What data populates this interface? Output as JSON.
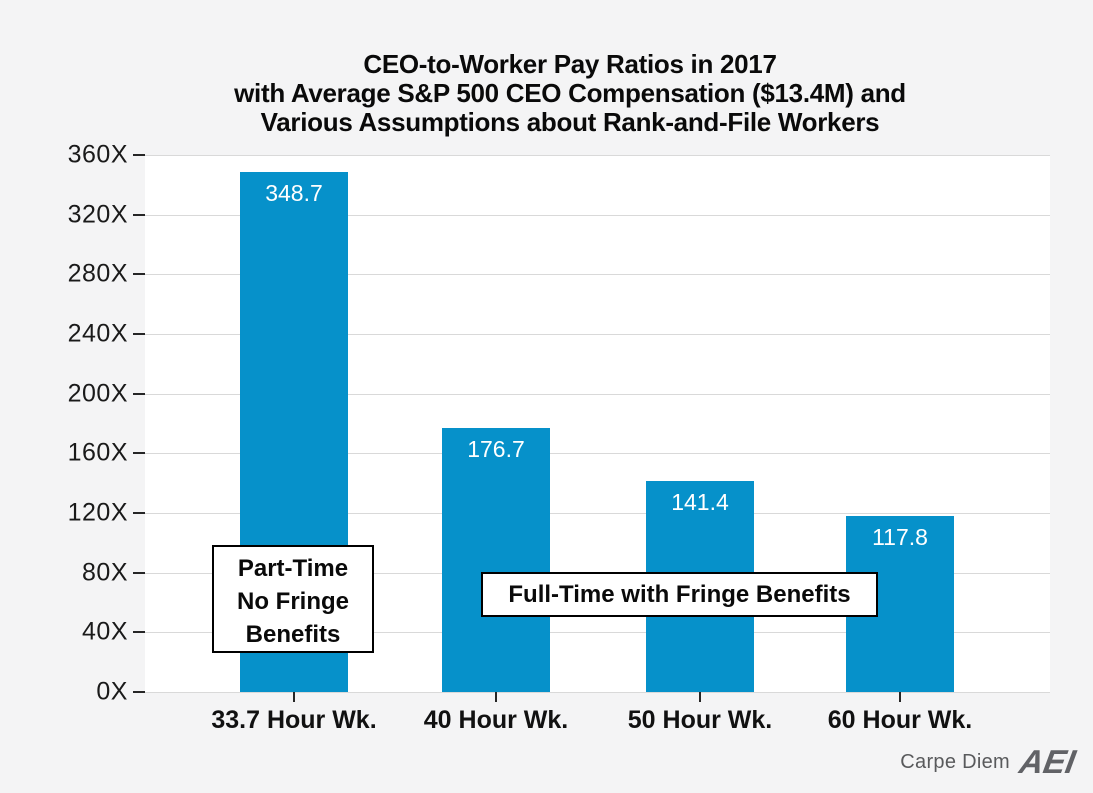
{
  "chart_data": {
    "type": "bar",
    "title": "CEO-to-Worker Pay Ratios in 2017 with Average S&P 500 CEO Compensation ($13.4M) and Various Assumptions about Rank-and-File Workers",
    "title_lines": [
      "CEO-to-Worker Pay Ratios in 2017",
      "with Average S&P 500 CEO Compensation ($13.4M) and",
      "Various Assumptions about Rank-and-File Workers"
    ],
    "categories": [
      "33.7 Hour Wk.",
      "40 Hour Wk.",
      "50 Hour Wk.",
      "60 Hour Wk."
    ],
    "values": [
      348.7,
      176.7,
      141.4,
      117.8
    ],
    "xlabel": "",
    "ylabel": "",
    "ylim": [
      0,
      360
    ],
    "y_tick_step": 40,
    "y_tick_labels": [
      "0X",
      "40X",
      "80X",
      "120X",
      "160X",
      "200X",
      "240X",
      "280X",
      "320X",
      "360X"
    ],
    "grid": true,
    "legend": false,
    "colors": {
      "bar": "#0691ca",
      "value_label": "#ffffff",
      "gridline": "#d9d9d9",
      "logo_gray": "#616266"
    },
    "annotations": [
      {
        "lines": [
          "Part-Time",
          "No Fringe",
          "Benefits"
        ]
      },
      {
        "lines": [
          "Full-Time with Fringe Benefits"
        ]
      }
    ]
  },
  "footer": {
    "credit": "Carpe Diem",
    "logo_text": "AEI"
  }
}
